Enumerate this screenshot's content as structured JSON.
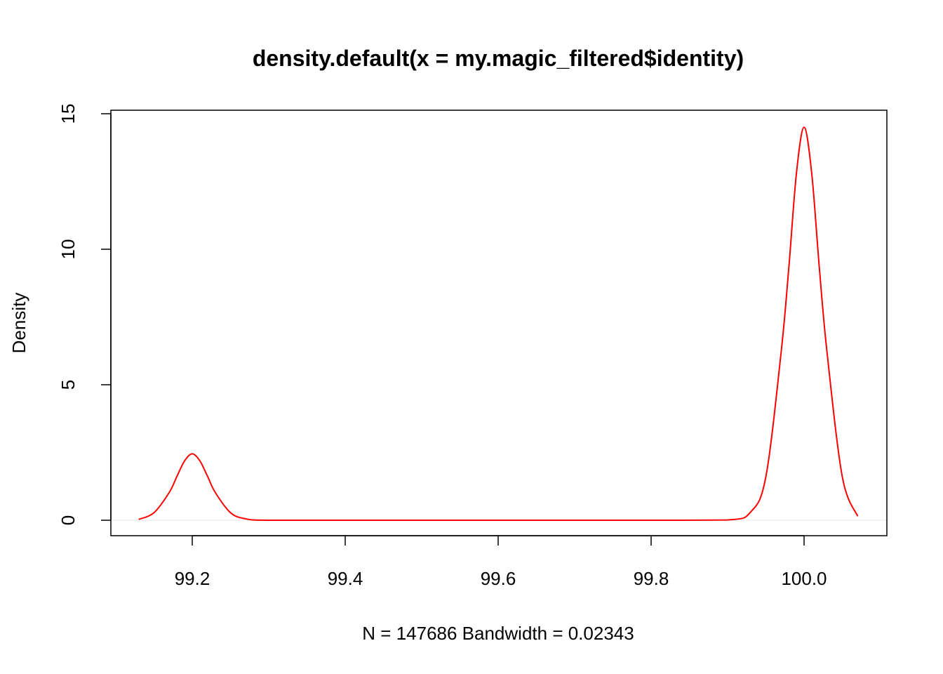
{
  "chart_data": {
    "type": "line",
    "title": "density.default(x = my.magic_filtered$identity)",
    "xlabel": "N = 147686   Bandwidth = 0.02343",
    "ylabel": "Density",
    "xlim": [
      99.13,
      100.07
    ],
    "ylim": [
      0,
      15
    ],
    "x_ticks": [
      99.2,
      99.4,
      99.6,
      99.8,
      100.0
    ],
    "x_tick_labels": [
      "99.2",
      "99.4",
      "99.6",
      "99.8",
      "100.0"
    ],
    "y_ticks": [
      0,
      5,
      10,
      15
    ],
    "y_tick_labels": [
      "0",
      "5",
      "10",
      "15"
    ],
    "grid": false,
    "legend": "none",
    "baseline_at_zero": true,
    "series": [
      {
        "color": "#ff0000",
        "x": [
          99.13,
          99.15,
          99.17,
          99.18,
          99.19,
          99.2,
          99.21,
          99.22,
          99.23,
          99.25,
          99.27,
          99.3,
          99.4,
          99.5,
          99.6,
          99.7,
          99.8,
          99.9,
          99.93,
          99.95,
          99.97,
          99.98,
          99.99,
          100.0,
          100.01,
          100.02,
          100.03,
          100.05,
          100.07
        ],
        "y": [
          0.03,
          0.28,
          1.03,
          1.62,
          2.19,
          2.45,
          2.19,
          1.62,
          1.03,
          0.28,
          0.05,
          0.0,
          0.0,
          0.0,
          0.0,
          0.0,
          0.0,
          0.01,
          0.3,
          1.6,
          6.2,
          9.3,
          12.8,
          14.5,
          12.8,
          9.3,
          6.2,
          1.6,
          0.15
        ]
      }
    ]
  }
}
